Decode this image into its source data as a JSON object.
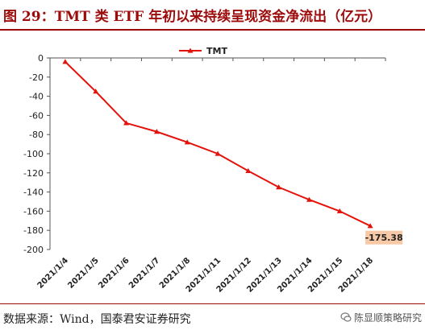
{
  "title": "图 29：TMT 类 ETF 年初以来持续呈现资金净流出（亿元）",
  "source": "数据来源：Wind，国泰君安证券研究",
  "watermark": "陈显顺策略研究",
  "colors": {
    "accent": "#9c0a0a",
    "series": "#e3120b",
    "annotation_bg": "#f7c9a6"
  },
  "chart_data": {
    "type": "line",
    "title": "图 29：TMT 类 ETF 年初以来持续呈现资金净流出（亿元）",
    "xlabel": "",
    "ylabel": "",
    "x": [
      "2021/1/4",
      "2021/1/5",
      "2021/1/6",
      "2021/1/7",
      "2021/1/8",
      "2021/1/11",
      "2021/1/12",
      "2021/1/13",
      "2021/1/14",
      "2021/1/15",
      "2021/1/18"
    ],
    "series": [
      {
        "name": "TMT",
        "values": [
          -4,
          -35,
          -68,
          -77,
          -88,
          -100,
          -118,
          -135,
          -148,
          -160,
          -175.38
        ]
      }
    ],
    "ylim": [
      -200,
      0
    ],
    "yticks": [
      0,
      -20,
      -40,
      -60,
      -80,
      -100,
      -120,
      -140,
      -160,
      -180,
      -200
    ],
    "marker": "triangle",
    "grid": false,
    "legend": "top-center",
    "annotation": {
      "x": "2021/1/18",
      "text": "-175.38"
    }
  }
}
